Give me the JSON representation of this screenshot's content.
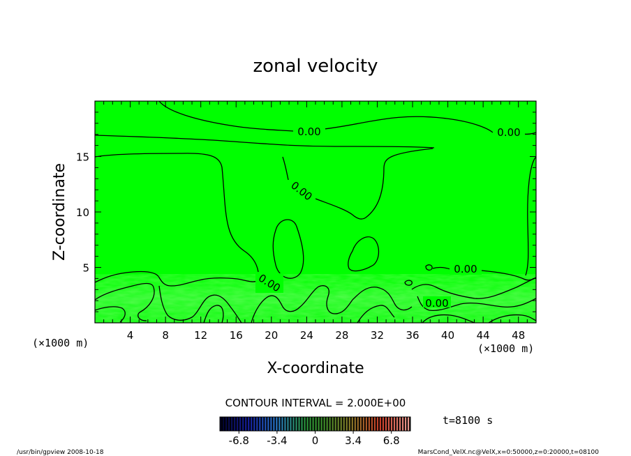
{
  "chart_data": {
    "type": "contour",
    "title": "zonal velocity",
    "xlabel": "X-coordinate",
    "ylabel": "Z-coordinate",
    "x_unit": "(×1000 m)",
    "y_unit": "(×1000 m)",
    "xlim": [
      0,
      50
    ],
    "ylim": [
      0,
      20
    ],
    "x_ticks": [
      4,
      8,
      12,
      16,
      20,
      24,
      28,
      32,
      36,
      40,
      44,
      48
    ],
    "y_ticks": [
      5,
      10,
      15
    ],
    "contour_interval_text": "CONTOUR INTERVAL = 2.000E+00",
    "contour_labels": [
      {
        "text": "0.00",
        "x": 24.0,
        "y": 17.2
      },
      {
        "text": "0.00",
        "x": 47.3,
        "y": 17.2
      },
      {
        "text": "0.00",
        "x": 23.0,
        "y": 12.0
      },
      {
        "text": "0.00",
        "x": 19.9,
        "y": 3.7
      },
      {
        "text": "0.00",
        "x": 41.5,
        "y": 4.9
      },
      {
        "text": "0.00",
        "x": 38.9,
        "y": 1.8
      }
    ],
    "colorbar": {
      "ticks": [
        "-6.8",
        "-3.4",
        "0",
        "3.4",
        "6.8"
      ],
      "tick_values": [
        -6.8,
        -3.4,
        0,
        3.4,
        6.8
      ],
      "range": [
        -8.5,
        8.5
      ]
    },
    "time_label": "t=8100 s",
    "background_color": "#00ff00"
  },
  "footer": {
    "left": "/usr/bin/gpview   2008-10-18",
    "right": "MarsCond_VelX.nc@VelX,x=0:50000,z=0:20000,t=08100"
  }
}
